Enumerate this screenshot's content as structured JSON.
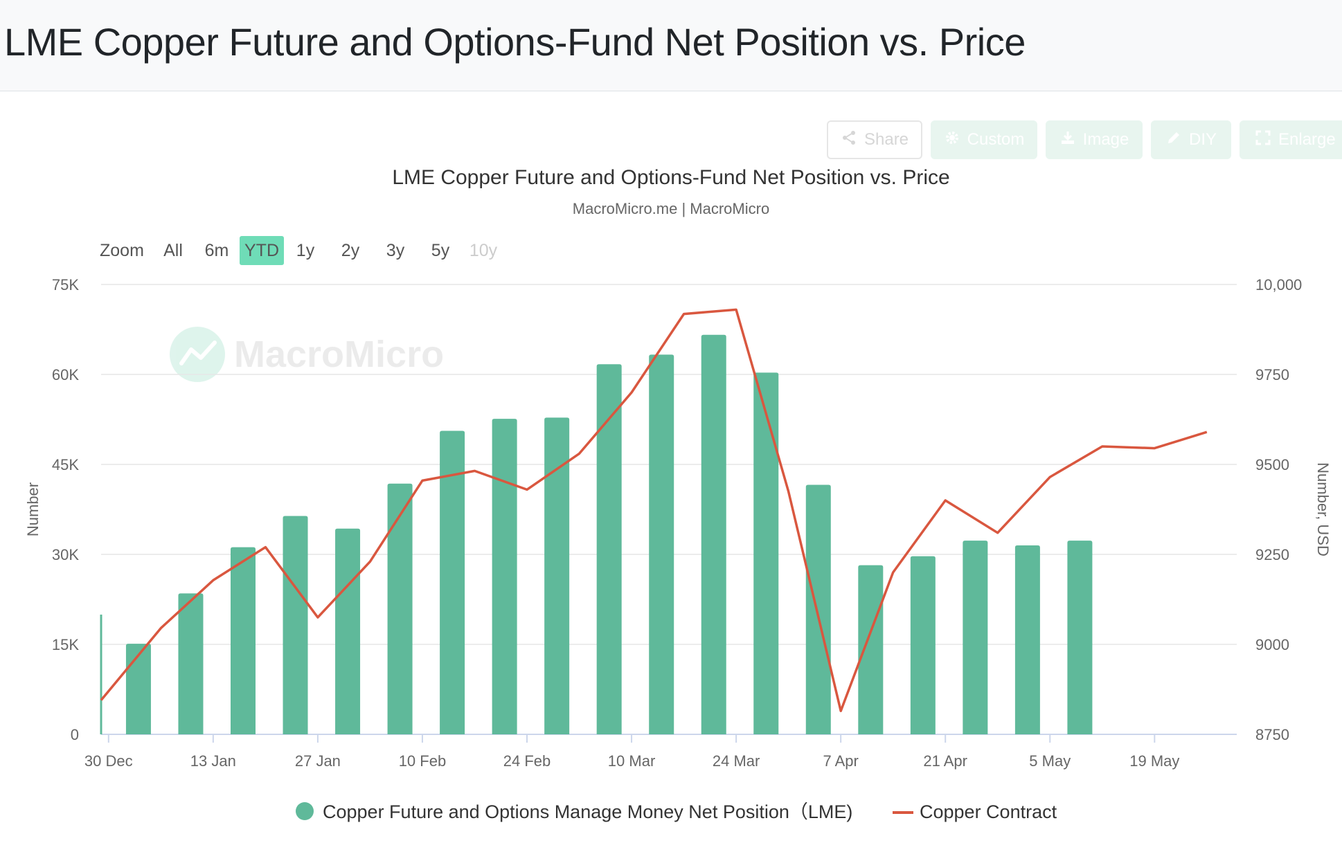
{
  "page": {
    "title": "LME Copper Future and Options-Fund Net Position vs. Price"
  },
  "toolbar": {
    "share_label": "Share",
    "custom_label": "Custom",
    "image_label": "Image",
    "diy_label": "DIY",
    "enlarge_label": "Enlarge",
    "icons": [
      "share-icon",
      "gear-icon",
      "download-icon",
      "pencil-icon",
      "expand-icon"
    ]
  },
  "range_selector": {
    "zoom_label": "Zoom",
    "options": [
      "All",
      "6m",
      "YTD",
      "1y",
      "2y",
      "3y",
      "5y",
      "10y"
    ],
    "selected": "YTD",
    "disabled": [
      "10y"
    ]
  },
  "watermark": "MacroMicro",
  "colors": {
    "bar": "#5fb99a",
    "line": "#d9573f",
    "selected_range": "#6fdcb7",
    "grid": "#e6e6e6"
  },
  "chart_data": {
    "type": "bar",
    "title": "LME Copper Future and Options-Fund Net Position vs. Price",
    "subtitle": "MacroMicro.me | MacroMicro",
    "x_ticks": [
      "30 Dec",
      "13 Jan",
      "27 Jan",
      "10 Feb",
      "24 Feb",
      "10 Mar",
      "24 Mar",
      "7 Apr",
      "21 Apr",
      "5 May",
      "19 May"
    ],
    "x_range": [
      "2024-12-29",
      "2025-05-30"
    ],
    "y_left": {
      "label": "Number",
      "ticks": [
        "0",
        "15K",
        "30K",
        "45K",
        "60K",
        "75K"
      ],
      "range": [
        0,
        75000
      ]
    },
    "y_right": {
      "label": "Number, USD",
      "ticks": [
        "8750",
        "9000",
        "9250",
        "9500",
        "9750",
        "10,000"
      ],
      "range": [
        8750,
        10000
      ]
    },
    "grid": true,
    "legend_position": "bottom",
    "series": [
      {
        "name": "Copper Future and Options Manage Money Net Position（LME)",
        "type": "bar",
        "axis": "left",
        "points": [
          {
            "x": "2025-01-03",
            "y": 15100
          },
          {
            "x": "2025-01-10",
            "y": 23500
          },
          {
            "x": "2025-01-17",
            "y": 31200
          },
          {
            "x": "2025-01-24",
            "y": 36400
          },
          {
            "x": "2025-01-31",
            "y": 34300
          },
          {
            "x": "2025-02-07",
            "y": 41800
          },
          {
            "x": "2025-02-14",
            "y": 50600
          },
          {
            "x": "2025-02-21",
            "y": 52600
          },
          {
            "x": "2025-02-28",
            "y": 52800
          },
          {
            "x": "2025-03-07",
            "y": 61700
          },
          {
            "x": "2025-03-14",
            "y": 63300
          },
          {
            "x": "2025-03-21",
            "y": 66600
          },
          {
            "x": "2025-03-28",
            "y": 60300
          },
          {
            "x": "2025-04-04",
            "y": 41600
          },
          {
            "x": "2025-04-11",
            "y": 28200
          },
          {
            "x": "2025-04-18",
            "y": 29700
          },
          {
            "x": "2025-04-25",
            "y": 32300
          },
          {
            "x": "2025-05-02",
            "y": 31500
          },
          {
            "x": "2025-05-09",
            "y": 32300
          }
        ]
      },
      {
        "name": "Copper Contract",
        "type": "line",
        "axis": "right",
        "points": [
          {
            "x": "2024-12-29",
            "y": 8845
          },
          {
            "x": "2025-01-06",
            "y": 9045
          },
          {
            "x": "2025-01-13",
            "y": 9178
          },
          {
            "x": "2025-01-20",
            "y": 9270
          },
          {
            "x": "2025-01-27",
            "y": 9075
          },
          {
            "x": "2025-02-03",
            "y": 9230
          },
          {
            "x": "2025-02-10",
            "y": 9455
          },
          {
            "x": "2025-02-17",
            "y": 9482
          },
          {
            "x": "2025-02-24",
            "y": 9430
          },
          {
            "x": "2025-03-03",
            "y": 9530
          },
          {
            "x": "2025-03-10",
            "y": 9700
          },
          {
            "x": "2025-03-17",
            "y": 9918
          },
          {
            "x": "2025-03-24",
            "y": 9930
          },
          {
            "x": "2025-03-31",
            "y": 9425
          },
          {
            "x": "2025-04-07",
            "y": 8815
          },
          {
            "x": "2025-04-14",
            "y": 9200
          },
          {
            "x": "2025-04-21",
            "y": 9400
          },
          {
            "x": "2025-04-28",
            "y": 9310
          },
          {
            "x": "2025-05-05",
            "y": 9465
          },
          {
            "x": "2025-05-12",
            "y": 9550
          },
          {
            "x": "2025-05-19",
            "y": 9545
          },
          {
            "x": "2025-05-26",
            "y": 9590
          }
        ]
      }
    ]
  }
}
